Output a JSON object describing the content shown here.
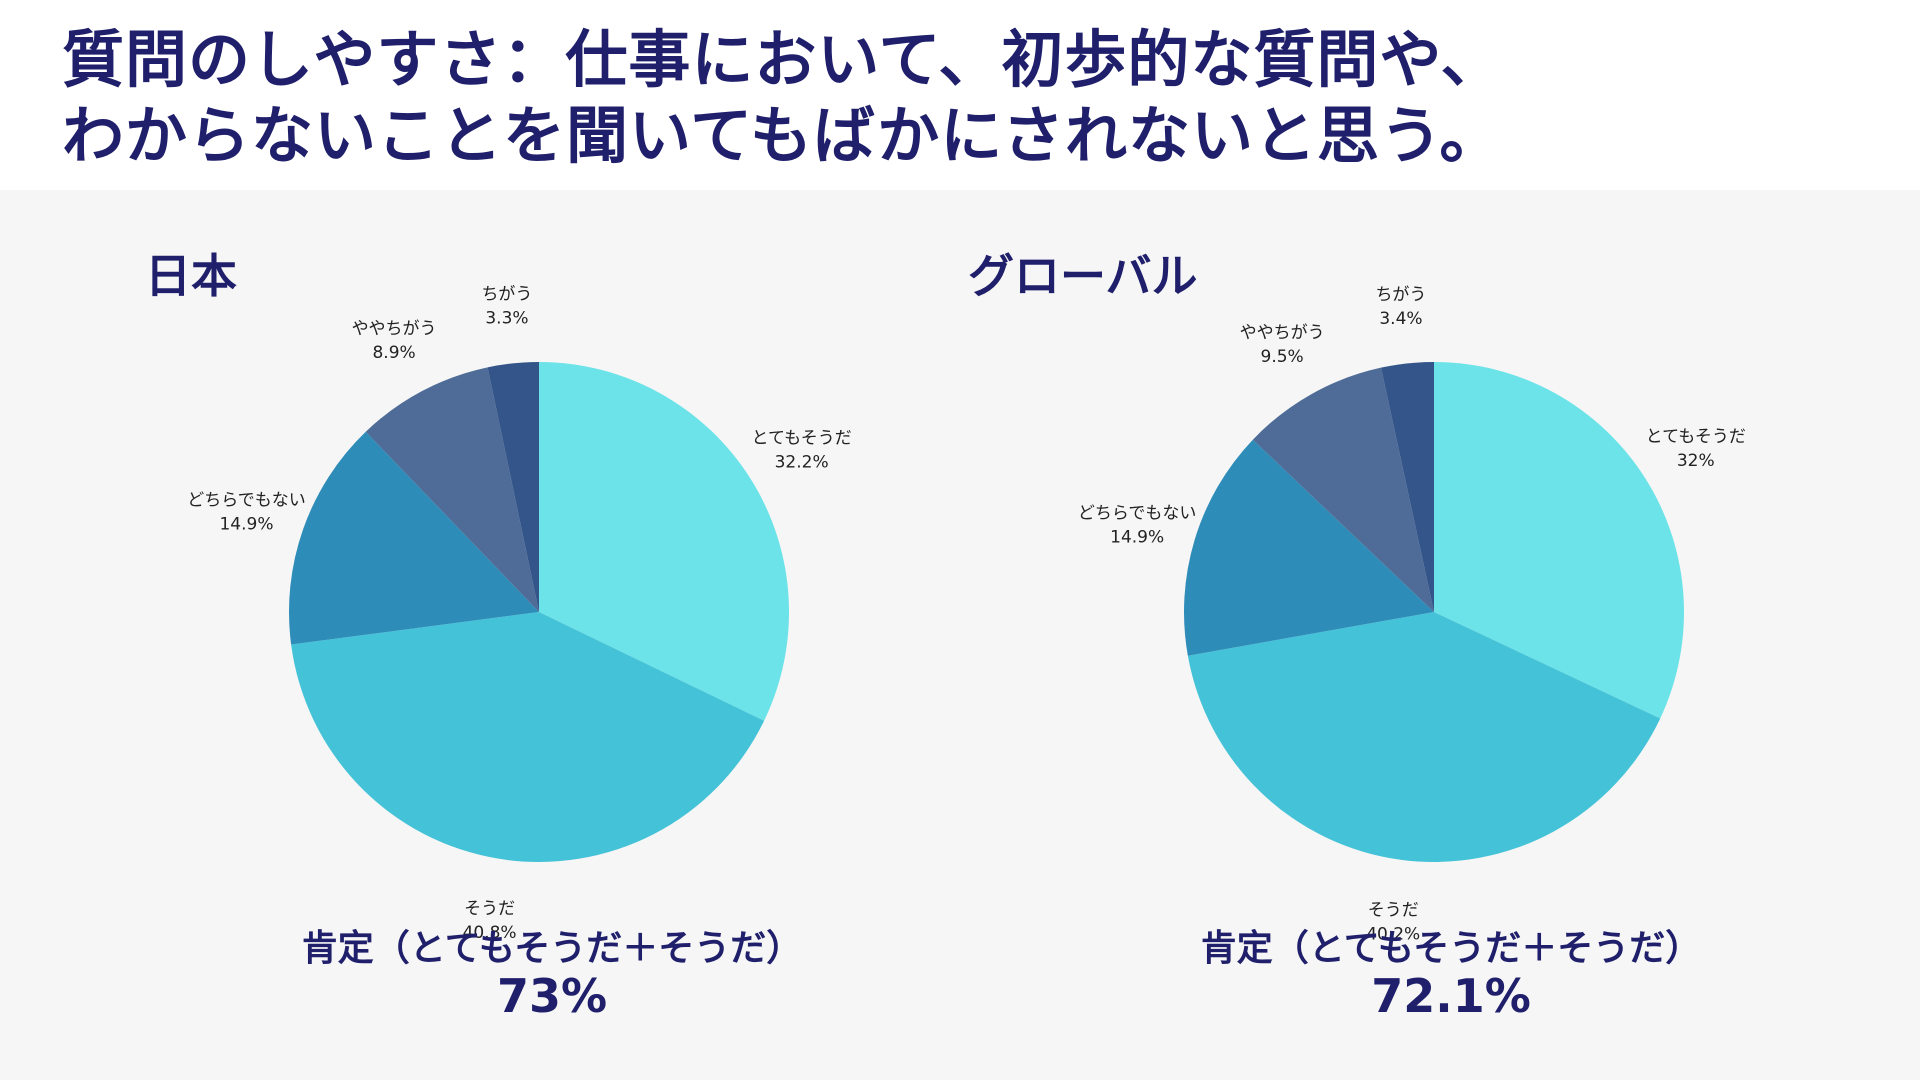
{
  "title": {
    "line1": "質問のしやすさ：仕事において、初歩的な質問や、",
    "line2": "わからないことを聞いてもばかにされないと思う。"
  },
  "colors": {
    "title": "#1f1f6b",
    "background_panel": "#f6f6f6",
    "slice_strongly_agree": "#6be3e8",
    "slice_agree": "#44c2d7",
    "slice_neutral": "#2e8cb9",
    "slice_somewhat_disagree": "#4e6c97",
    "slice_disagree": "#34558a"
  },
  "chart_data": [
    {
      "type": "pie",
      "title": "日本",
      "start": "12 o'clock, clockwise",
      "slices": [
        {
          "label": "とてもそうだ",
          "value": 32.2,
          "value_label": "32.2%",
          "color": "#6be3e8"
        },
        {
          "label": "そうだ",
          "value": 40.8,
          "value_label": "40.8%",
          "color": "#44c2d7"
        },
        {
          "label": "どちらでもない",
          "value": 14.9,
          "value_label": "14.9%",
          "color": "#2e8cb9"
        },
        {
          "label": "ややちがう",
          "value": 8.9,
          "value_label": "8.9%",
          "color": "#4e6c97"
        },
        {
          "label": "ちがう",
          "value": 3.3,
          "value_label": "3.3%",
          "color": "#34558a"
        }
      ],
      "summary_label": "肯定（とてもそうだ＋そうだ）",
      "summary_value": "73%"
    },
    {
      "type": "pie",
      "title": "グローバル",
      "start": "12 o'clock, clockwise",
      "slices": [
        {
          "label": "とてもそうだ",
          "value": 32,
          "value_label": "32%",
          "color": "#6be3e8"
        },
        {
          "label": "そうだ",
          "value": 40.2,
          "value_label": "40.2%",
          "color": "#44c2d7"
        },
        {
          "label": "どちらでもない",
          "value": 14.9,
          "value_label": "14.9%",
          "color": "#2e8cb9"
        },
        {
          "label": "ややちがう",
          "value": 9.5,
          "value_label": "9.5%",
          "color": "#4e6c97"
        },
        {
          "label": "ちがう",
          "value": 3.4,
          "value_label": "3.4%",
          "color": "#34558a"
        }
      ],
      "summary_label": "肯定（とてもそうだ＋そうだ）",
      "summary_value": "72.1%"
    }
  ]
}
